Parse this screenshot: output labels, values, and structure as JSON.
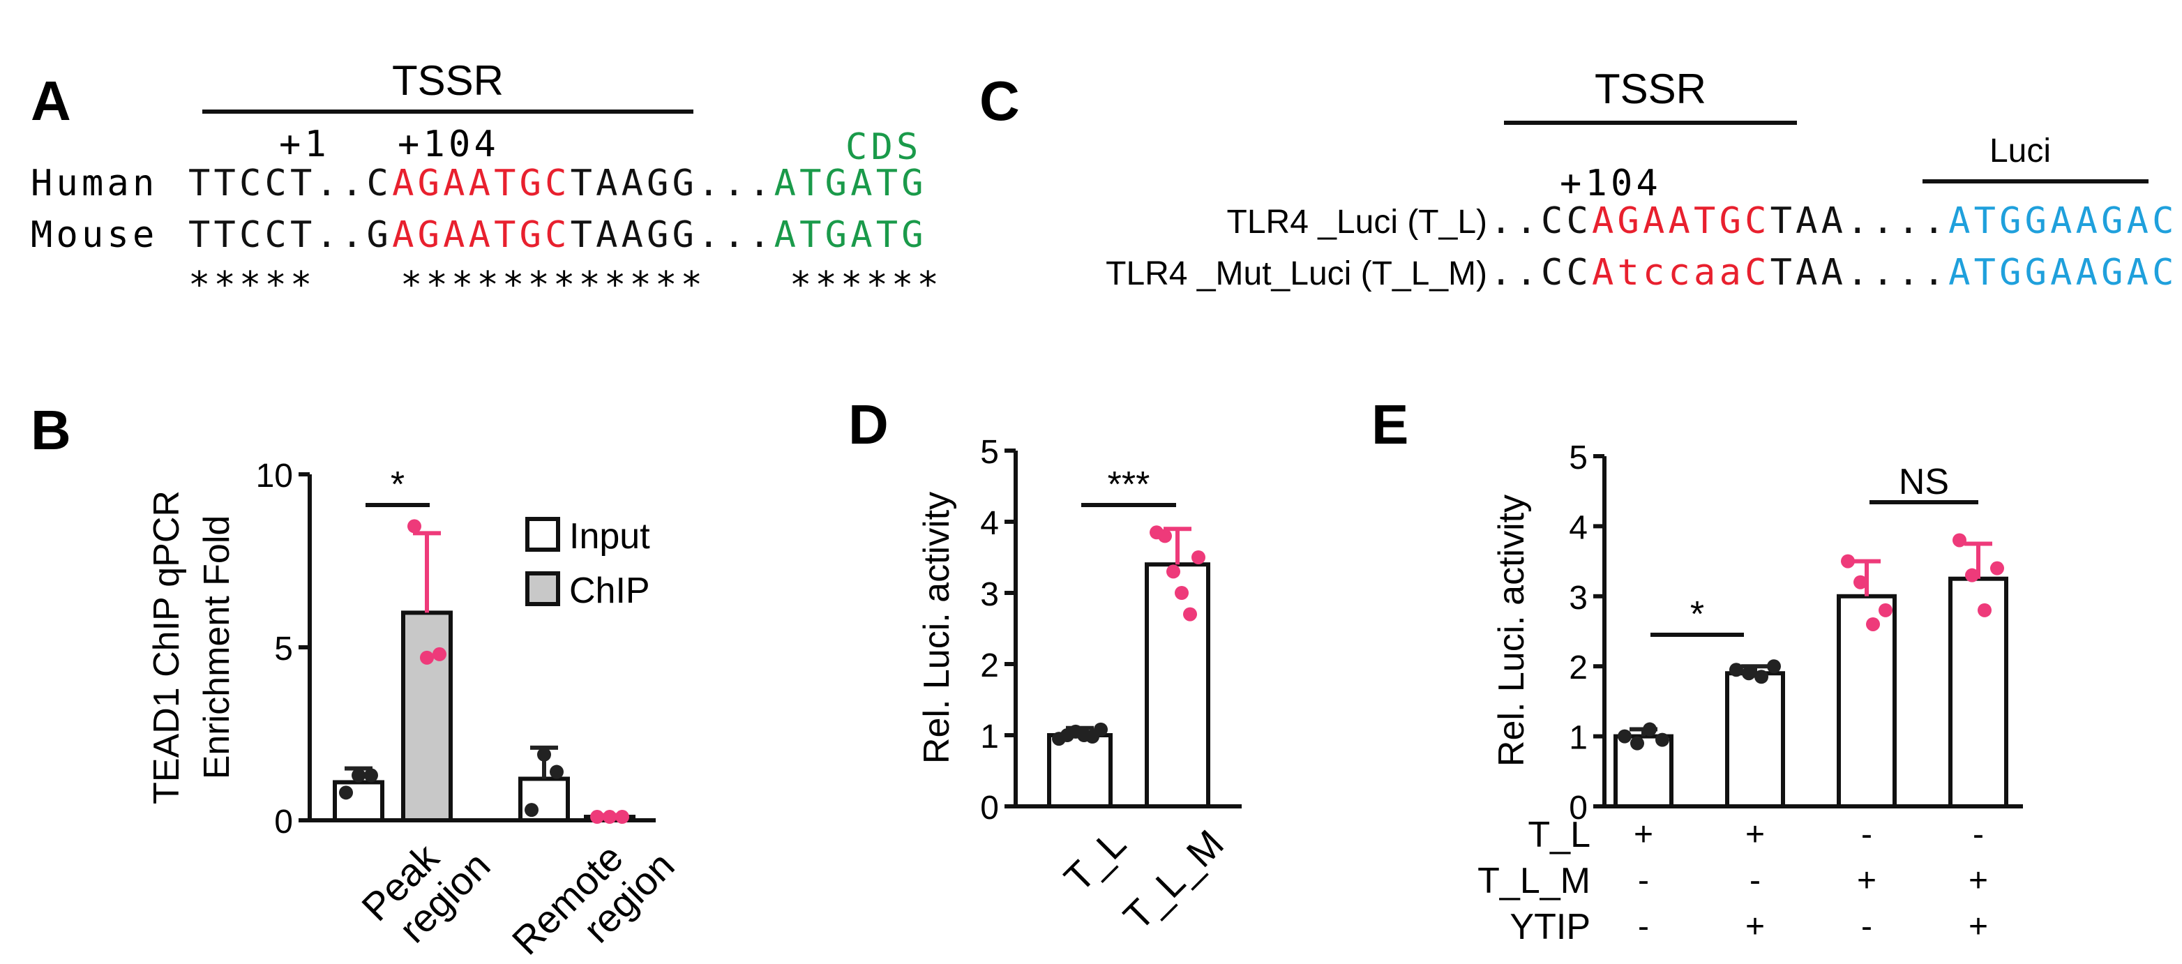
{
  "sequences": {
    "A": {
      "panel": "A",
      "tssr": "TSSR",
      "pos1": "+1",
      "pos104": "+104",
      "cds": "CDS",
      "rows": [
        {
          "label": "Human",
          "segments": [
            {
              "text": "TTCCT..C",
              "color": "#111111"
            },
            {
              "text": "AGAATGC",
              "color": "#e8202e"
            },
            {
              "text": "TAAGG...",
              "color": "#111111"
            },
            {
              "text": "ATGATG",
              "color": "#1a9a4a"
            }
          ]
        },
        {
          "label": "Mouse",
          "segments": [
            {
              "text": "TTCCT..G",
              "color": "#111111"
            },
            {
              "text": "AGAATGC",
              "color": "#e8202e"
            },
            {
              "text": "TAAGG...",
              "color": "#111111"
            },
            {
              "text": "ATGATG",
              "color": "#1a9a4a"
            }
          ]
        }
      ],
      "conservation": [
        "*****",
        "************",
        "******"
      ]
    },
    "C": {
      "panel": "C",
      "tssr": "TSSR",
      "luci": "Luci",
      "pos104": "+104",
      "rows": [
        {
          "label": "TLR4 _Luci (T_L)",
          "segments": [
            {
              "text": "..CC",
              "color": "#111111"
            },
            {
              "text": "AGAATGC",
              "color": "#e8202e"
            },
            {
              "text": "TAA....",
              "color": "#111111"
            },
            {
              "text": "ATGGAAGAC",
              "color": "#1fa0dc"
            }
          ]
        },
        {
          "label": "TLR4 _Mut_Luci (T_L_M)",
          "segments": [
            {
              "text": "..CC",
              "color": "#111111"
            },
            {
              "text": "AtccaaC",
              "color": "#e8202e"
            },
            {
              "text": "TAA....",
              "color": "#111111"
            },
            {
              "text": "ATGGAAGAC",
              "color": "#1fa0dc"
            }
          ]
        }
      ]
    }
  },
  "chart_data": [
    {
      "type": "bar",
      "panel": "B",
      "ylabel": [
        "TEAD1 ChIP qPCR",
        "Enrichment Fold"
      ],
      "categories": [
        [
          "Peak",
          "region"
        ],
        [
          "Remote",
          "region"
        ]
      ],
      "series": [
        {
          "name": "Input",
          "color": "#ffffff",
          "point_color": "#222222",
          "values": [
            1.1,
            1.2
          ],
          "errors": [
            0.4,
            0.9
          ],
          "points": [
            [
              0.8,
              1.3,
              1.3
            ],
            [
              0.3,
              1.9,
              1.4
            ]
          ]
        },
        {
          "name": "ChIP",
          "color": "#c8c8c8",
          "point_color": "#ee3a7a",
          "values": [
            6.0,
            0.1
          ],
          "errors": [
            2.3,
            0.05
          ],
          "points": [
            [
              8.5,
              4.7,
              4.8
            ],
            [
              0.1,
              0.1,
              0.1
            ]
          ]
        }
      ],
      "ylim": [
        0,
        10
      ],
      "yticks": [
        0,
        5,
        10
      ],
      "annotations": [
        "*"
      ],
      "legend": "upper right"
    },
    {
      "type": "bar",
      "panel": "D",
      "ylabel": [
        "Rel. Luci. activity"
      ],
      "categories": [
        [
          "T_L"
        ],
        [
          "T_L_M"
        ]
      ],
      "series": [
        {
          "color": "#ffffff",
          "point_colors": [
            "#222222",
            "#ee3a7a"
          ],
          "values": [
            1.0,
            3.4
          ],
          "errors": [
            0.1,
            0.5
          ],
          "points": [
            [
              0.95,
              1.0,
              1.05,
              1.0,
              0.98,
              1.08
            ],
            [
              3.85,
              3.8,
              3.3,
              3.0,
              2.7,
              3.5
            ]
          ]
        }
      ],
      "ylim": [
        0,
        5
      ],
      "yticks": [
        0,
        1,
        2,
        3,
        4,
        5
      ],
      "annotations": [
        "***"
      ]
    },
    {
      "type": "bar",
      "panel": "E",
      "ylabel": [
        "Rel. Luci. activity"
      ],
      "series": [
        {
          "color": "#ffffff",
          "point_colors": [
            "#222222",
            "#222222",
            "#ee3a7a",
            "#ee3a7a"
          ],
          "values": [
            1.0,
            1.9,
            3.0,
            3.25
          ],
          "errors": [
            0.1,
            0.1,
            0.5,
            0.5
          ],
          "points": [
            [
              1.0,
              0.9,
              1.1,
              0.95
            ],
            [
              1.95,
              1.9,
              1.85,
              2.0
            ],
            [
              3.5,
              3.2,
              2.6,
              2.8
            ],
            [
              3.8,
              3.3,
              2.8,
              3.4
            ]
          ]
        }
      ],
      "ylim": [
        0,
        5
      ],
      "yticks": [
        0,
        1,
        2,
        3,
        4,
        5
      ],
      "annotations": [
        "*",
        "NS"
      ],
      "conditions": [
        {
          "label": "T_L",
          "signs": [
            "+",
            "+",
            "-",
            "-"
          ]
        },
        {
          "label": "T_L_M",
          "signs": [
            "-",
            "-",
            "+",
            "+"
          ]
        },
        {
          "label": "YTIP",
          "signs": [
            "-",
            "+",
            "-",
            "+"
          ]
        }
      ]
    }
  ]
}
